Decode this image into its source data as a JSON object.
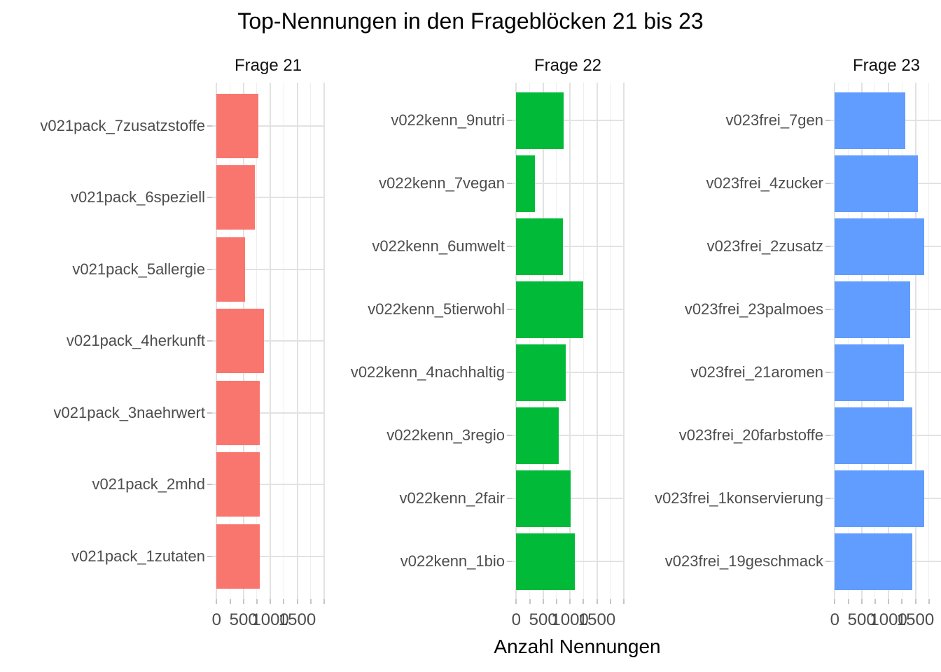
{
  "title": "Top-Nennungen in den Frageblöcken 21 bis 23",
  "x_axis_title": "Anzahl Nennungen",
  "colors": {
    "facet_21_bar": "#F8766D",
    "facet_22_bar": "#00BA38",
    "facet_23_bar": "#619CFF",
    "grid_major": "#e2e2e2",
    "grid_minor": "#efefef",
    "axis_text": "#4d4d4d",
    "tick_mark": "#c6c6c6",
    "title_text": "#000000"
  },
  "chart_data": {
    "type": "bar",
    "orientation": "horizontal",
    "title": "Top-Nennungen in den Frageblöcken 21 bis 23",
    "xlabel": "Anzahl Nennungen",
    "ylabel": "",
    "grid": "on",
    "legend": "none",
    "x_axis": {
      "range": [
        0,
        2050
      ],
      "labeled_breaks": [
        0,
        500,
        1000,
        1500
      ],
      "tick_labels": [
        "0",
        "500",
        "1000",
        "1500"
      ],
      "minor_step": 250
    },
    "facets": [
      {
        "label": "Frage 21",
        "color": "#F8766D",
        "categories": [
          "v021pack_7zusatzstoffe",
          "v021pack_6speziell",
          "v021pack_5allergie",
          "v021pack_4herkunft",
          "v021pack_3naehrwert",
          "v021pack_2mhd",
          "v021pack_1zutaten"
        ],
        "values": [
          775,
          710,
          530,
          890,
          810,
          810,
          810
        ]
      },
      {
        "label": "Frage 22",
        "color": "#00BA38",
        "categories": [
          "v022kenn_9nutri",
          "v022kenn_7vegan",
          "v022kenn_6umwelt",
          "v022kenn_5tierwohl",
          "v022kenn_4nachhaltig",
          "v022kenn_3regio",
          "v022kenn_2fair",
          "v022kenn_1bio"
        ],
        "values": [
          880,
          350,
          870,
          1250,
          930,
          795,
          1010,
          1100
        ]
      },
      {
        "label": "Frage 23",
        "color": "#619CFF",
        "categories": [
          "v023frei_7gen",
          "v023frei_4zucker",
          "v023frei_2zusatz",
          "v023frei_23palmoes",
          "v023frei_21aromen",
          "v023frei_20farbstoffe",
          "v023frei_1konservierung",
          "v023frei_19geschmack"
        ],
        "values": [
          1315,
          1550,
          1670,
          1405,
          1295,
          1440,
          1670,
          1445
        ]
      }
    ]
  }
}
